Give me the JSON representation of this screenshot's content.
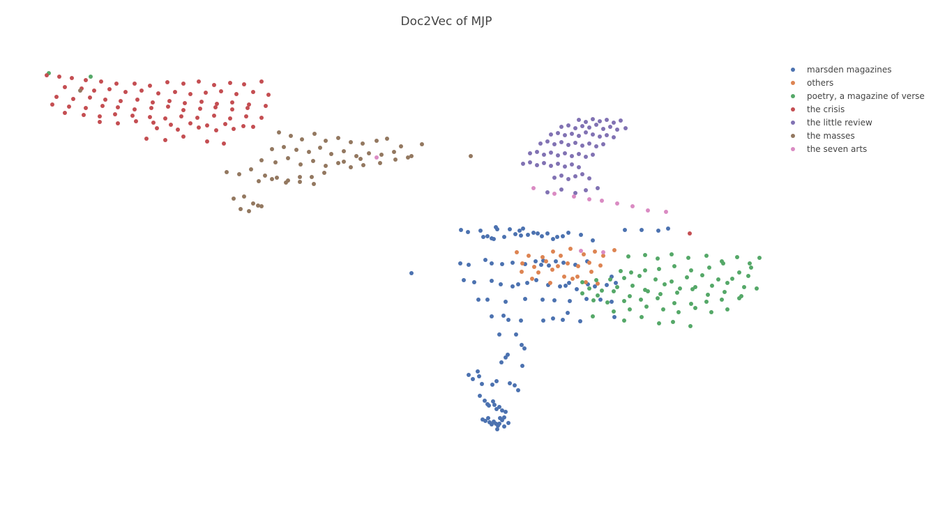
{
  "chart_data": {
    "type": "scatter",
    "title": "Doc2Vec of MJP",
    "xlabel": "",
    "ylabel": "",
    "axes_visible": false,
    "grid": false,
    "legend_position": "top-right",
    "xlim": [
      0,
      1000
    ],
    "ylim": [
      0,
      600
    ],
    "series": [
      {
        "name": "marsden magazines",
        "color": "#4c72b0",
        "x": [
          616,
          626,
          644,
          648,
          654,
          660,
          663,
          666,
          668,
          678,
          686,
          694,
          700,
          702,
          705,
          712,
          720,
          726,
          732,
          740,
          748,
          754,
          762,
          770,
          788,
          805,
          615,
          627,
          651,
          660,
          675,
          690,
          708,
          723,
          731,
          734,
          742,
          752,
          763,
          780,
          797,
          851,
          875,
          899,
          913,
          620,
          635,
          660,
          673,
          690,
          698,
          711,
          724,
          741,
          758,
          766,
          771,
          782,
          798,
          808,
          825,
          838,
          832,
          641,
          654,
          680,
          708,
          733,
          750,
          772,
          796,
          816,
          832,
          660,
          677,
          684,
          702,
          734,
          748,
          762,
          769,
          787,
          836,
          671,
          695,
          703,
          707,
          680,
          683,
          674,
          704,
          627,
          633,
          640,
          642,
          646,
          661,
          667,
          686,
          693,
          698,
          643,
          650,
          654,
          656,
          662,
          664,
          667,
          671,
          675,
          680,
          647,
          651,
          655,
          657,
          660,
          663,
          666,
          669,
          672,
          675,
          678,
          684,
          678,
          671,
          668,
          545
        ],
        "y": [
          350,
          347,
          349,
          340,
          341,
          338,
          337,
          354,
          351,
          340,
          351,
          344,
          349,
          342,
          352,
          343,
          346,
          345,
          341,
          345,
          337,
          340,
          341,
          346,
          343,
          335,
          302,
          300,
          307,
          302,
          301,
          303,
          301,
          305,
          300,
          306,
          299,
          305,
          303,
          300,
          305,
          350,
          350,
          349,
          352,
          278,
          275,
          277,
          272,
          269,
          272,
          274,
          278,
          271,
          269,
          270,
          274,
          265,
          272,
          269,
          271,
          274,
          283,
          250,
          250,
          247,
          251,
          250,
          249,
          248,
          251,
          250,
          247,
          226,
          227,
          221,
          220,
          220,
          223,
          221,
          231,
          219,
          225,
          200,
          200,
          185,
          180,
          167,
          171,
          160,
          155,
          142,
          136,
          147,
          140,
          129,
          128,
          133,
          130,
          127,
          120,
          112,
          105,
          100,
          98,
          104,
          99,
          93,
          96,
          91,
          89,
          78,
          76,
          80,
          74,
          71,
          75,
          72,
          69,
          80,
          77,
          81,
          73,
          68,
          72,
          64,
          288
        ]
      },
      {
        "name": "others",
        "color": "#dd8452",
        "x": [
          696,
          713,
          733,
          748,
          759,
          773,
          792,
          808,
          820,
          836,
          704,
          721,
          738,
          755,
          769,
          784,
          800,
          816,
          703,
          727,
          747,
          764,
          783,
          803,
          718,
          744,
          776,
          795,
          812
        ],
        "y": [
          318,
          313,
          311,
          319,
          313,
          323,
          315,
          319,
          313,
          321,
          302,
          297,
          305,
          298,
          302,
          298,
          303,
          299,
          290,
          289,
          293,
          283,
          283,
          290,
          280,
          274,
          280,
          275,
          273
        ]
      },
      {
        "name": "poetry, a magazine of verse",
        "color": "#55a868",
        "x": [
          856,
          880,
          898,
          918,
          942,
          968,
          990,
          1012,
          1030,
          1044,
          845,
          860,
          880,
          900,
          922,
          946,
          972,
          992,
          1015,
          1032,
          790,
          810,
          830,
          850,
          872,
          895,
          918,
          940,
          962,
          985,
          1005,
          1028,
          800,
          818,
          840,
          862,
          884,
          908,
          930,
          952,
          976,
          998,
          1022,
          1040,
          790,
          812,
          835,
          858,
          880,
          902,
          926,
          948,
          970,
          994,
          1018,
          806,
          826,
          850,
          874,
          898,
          922,
          946,
          968,
          990,
          1015,
          835,
          858,
          882,
          906,
          928,
          952,
          975,
          998,
          805,
          850,
          875,
          900,
          920,
          945,
          25,
          85
        ],
        "y": [
          312,
          314,
          309,
          315,
          310,
          313,
          305,
          311,
          302,
          310,
          291,
          289,
          292,
          294,
          298,
          292,
          296,
          302,
          289,
          296,
          275,
          278,
          279,
          281,
          284,
          279,
          276,
          282,
          285,
          279,
          280,
          284,
          266,
          263,
          268,
          270,
          262,
          272,
          266,
          268,
          270,
          274,
          268,
          266,
          259,
          256,
          262,
          255,
          264,
          258,
          260,
          265,
          257,
          261,
          255,
          249,
          246,
          248,
          250,
          252,
          245,
          244,
          247,
          250,
          252,
          233,
          236,
          240,
          236,
          232,
          238,
          232,
          236,
          226,
          220,
          225,
          216,
          218,
          212,
          575,
          570
        ]
      },
      {
        "name": "the crisis",
        "color": "#c44e52",
        "x": [
          22,
          40,
          58,
          78,
          100,
          122,
          148,
          170,
          195,
          218,
          240,
          262,
          285,
          305,
          330,
          48,
          72,
          90,
          112,
          135,
          158,
          182,
          206,
          228,
          250,
          272,
          294,
          318,
          340,
          36,
          60,
          84,
          106,
          128,
          152,
          174,
          198,
          220,
          244,
          266,
          288,
          312,
          30,
          54,
          78,
          102,
          124,
          148,
          172,
          196,
          218,
          242,
          264,
          288,
          310,
          336,
          48,
          75,
          98,
          120,
          145,
          170,
          192,
          215,
          238,
          262,
          285,
          308,
          330,
          98,
          124,
          150,
          175,
          200,
          228,
          252,
          278,
          304,
          180,
          210,
          240,
          265,
          290,
          318,
          165,
          192,
          218,
          252,
          276,
          944
        ],
        "y": [
          572,
          570,
          568,
          565,
          563,
          560,
          560,
          557,
          562,
          560,
          563,
          558,
          561,
          559,
          563,
          555,
          553,
          550,
          552,
          548,
          550,
          546,
          548,
          545,
          547,
          549,
          545,
          548,
          544,
          541,
          538,
          540,
          537,
          535,
          537,
          533,
          535,
          532,
          534,
          531,
          533,
          530,
          530,
          527,
          525,
          528,
          526,
          523,
          525,
          527,
          522,
          524,
          526,
          523,
          525,
          528,
          518,
          515,
          513,
          516,
          514,
          512,
          510,
          513,
          511,
          514,
          510,
          513,
          511,
          505,
          503,
          506,
          504,
          501,
          503,
          500,
          502,
          499,
          496,
          494,
          497,
          493,
          495,
          498,
          481,
          479,
          484,
          477,
          474,
          345
        ]
      },
      {
        "name": "the little review",
        "color": "#8172b3",
        "x": [
          785,
          795,
          805,
          815,
          825,
          835,
          845,
          760,
          770,
          780,
          790,
          800,
          810,
          820,
          830,
          840,
          852,
          745,
          755,
          765,
          775,
          785,
          795,
          805,
          815,
          825,
          835,
          730,
          740,
          750,
          760,
          770,
          780,
          790,
          800,
          810,
          820,
          715,
          725,
          735,
          745,
          755,
          765,
          775,
          785,
          795,
          805,
          705,
          715,
          725,
          735,
          745,
          755,
          765,
          775,
          785,
          750,
          760,
          770,
          780,
          790,
          800,
          740,
          760,
          780,
          795,
          812
        ],
        "y": [
          508,
          505,
          509,
          506,
          508,
          504,
          507,
          498,
          500,
          496,
          499,
          497,
          501,
          495,
          498,
          494,
          496,
          487,
          489,
          486,
          488,
          485,
          490,
          487,
          484,
          486,
          483,
          474,
          477,
          473,
          476,
          472,
          475,
          471,
          474,
          470,
          473,
          460,
          462,
          458,
          461,
          457,
          460,
          456,
          459,
          455,
          458,
          445,
          447,
          443,
          446,
          442,
          445,
          441,
          444,
          440,
          425,
          428,
          423,
          427,
          430,
          424,
          404,
          408,
          403,
          407,
          410
        ]
      },
      {
        "name": "the masses",
        "color": "#937860",
        "x": [
          355,
          372,
          388,
          406,
          422,
          440,
          458,
          475,
          495,
          510,
          530,
          560,
          345,
          362,
          380,
          398,
          414,
          430,
          448,
          466,
          484,
          502,
          520,
          540,
          330,
          350,
          368,
          386,
          404,
          422,
          440,
          458,
          476,
          326,
          345,
          365,
          385,
          405,
          290,
          305,
          318,
          330,
          300,
          312,
          325,
          280,
          298,
          315,
          335,
          352,
          368,
          385,
          402,
          420,
          448,
          472,
          500,
          522,
          545,
          70,
          630
        ],
        "y": [
          490,
          485,
          480,
          488,
          478,
          482,
          476,
          474,
          478,
          481,
          470,
          473,
          466,
          469,
          465,
          462,
          468,
          459,
          463,
          456,
          460,
          458,
          462,
          454,
          450,
          447,
          453,
          444,
          449,
          442,
          446,
          440,
          443,
          420,
          423,
          418,
          426,
          416,
          395,
          398,
          388,
          384,
          380,
          377,
          385,
          433,
          430,
          437,
          428,
          425,
          421,
          419,
          426,
          432,
          448,
          452,
          446,
          451,
          456,
          550,
          456
        ]
      },
      {
        "name": "the seven arts",
        "color": "#da8bc3",
        "x": [
          495,
          720,
          750,
          778,
          800,
          818,
          840,
          862,
          884,
          910,
          788,
          820
        ],
        "y": [
          454,
          410,
          402,
          398,
          394,
          392,
          388,
          384,
          378,
          376,
          320,
          318
        ]
      }
    ]
  }
}
